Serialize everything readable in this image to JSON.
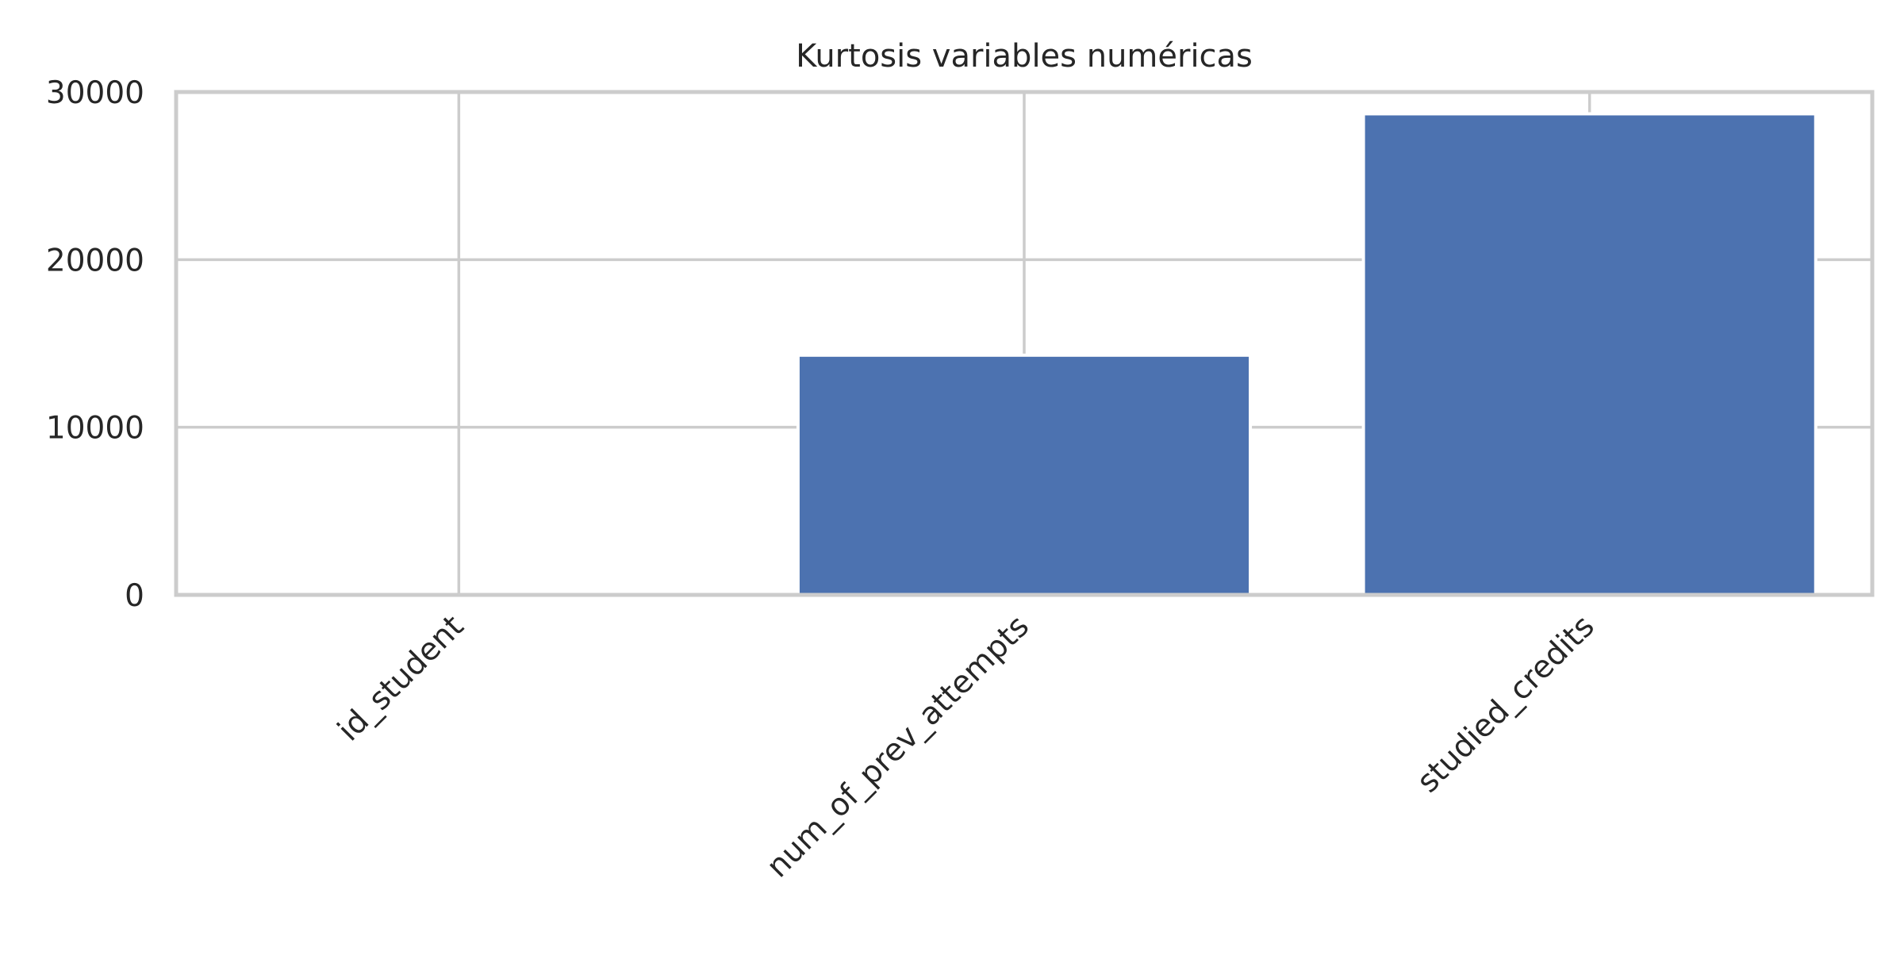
{
  "chart_data": {
    "type": "bar",
    "title": "Kurtosis variables numéricas",
    "xlabel": "",
    "ylabel": "",
    "categories": [
      "id_student",
      "num_of_prev_attempts",
      "studied_credits"
    ],
    "values": [
      0,
      14300,
      28700
    ],
    "ylim": [
      0,
      30000
    ],
    "yticks": [
      0,
      10000,
      20000,
      30000
    ],
    "grid": true,
    "legend": "none",
    "colors": {
      "bar": "#4c72b0",
      "grid": "#cccccc",
      "spine": "#cccccc",
      "text": "#262626"
    }
  }
}
